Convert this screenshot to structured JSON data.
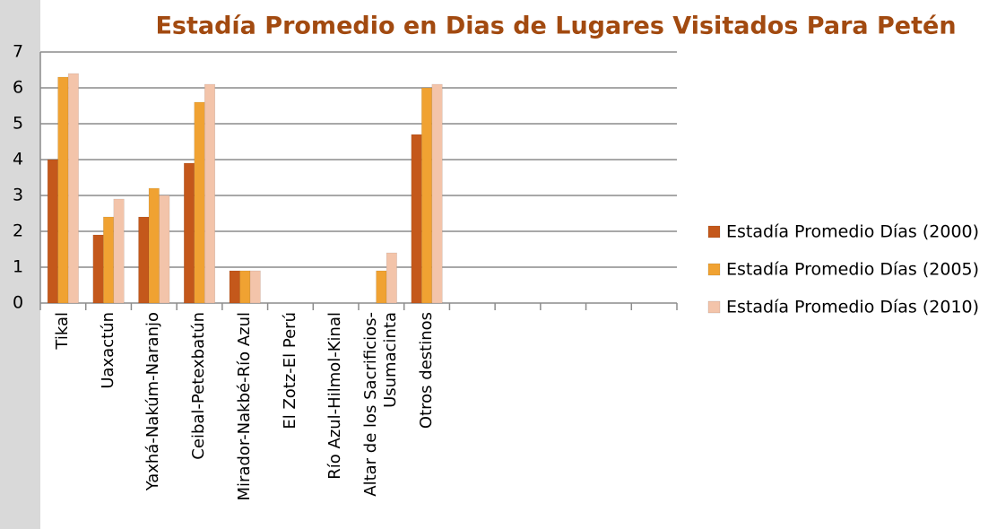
{
  "chart_data": {
    "type": "bar",
    "title": "Estadía Promedio en Dias de Lugares Visitados Para Petén",
    "categories": [
      "Tikal",
      "Uaxactún",
      "Yaxhá-Nakúm-Naranjo",
      "Ceibal-Petexbatún",
      "Mirador-Nakbé-Río Azul",
      "El Zotz-El Perú",
      "Río Azul-Hilmol-Kinal",
      "Altar de los Sacrificios-Usumacinta",
      "Otros destinos",
      null,
      null,
      null,
      null,
      null
    ],
    "series": [
      {
        "name": "Estadía Promedio Días (2000)",
        "color": "#c4581b",
        "values": [
          4,
          1.9,
          2.4,
          3.9,
          0.9,
          null,
          null,
          null,
          4.7,
          null,
          null,
          null,
          null,
          null
        ]
      },
      {
        "name": "Estadía Promedio Días (2005)",
        "color": "#f0a232",
        "values": [
          6.3,
          2.4,
          3.2,
          5.6,
          0.9,
          null,
          null,
          0.9,
          6,
          null,
          null,
          null,
          null,
          null
        ]
      },
      {
        "name": "Estadía Promedio Días (2010)",
        "color": "#f3c4aa",
        "values": [
          6.4,
          2.9,
          3,
          6.1,
          0.9,
          null,
          null,
          1.4,
          6.1,
          null,
          null,
          null,
          null,
          null
        ]
      }
    ],
    "ylim": [
      0,
      7
    ],
    "yticks": [
      0,
      1,
      2,
      3,
      4,
      5,
      6,
      7
    ],
    "grid": true,
    "legend": "right"
  }
}
